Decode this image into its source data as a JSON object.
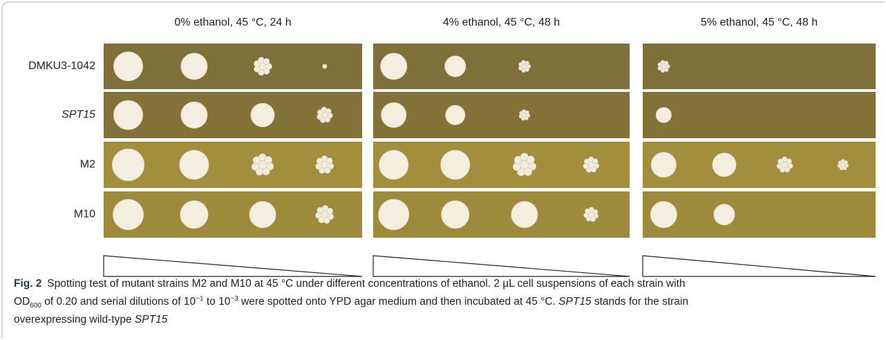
{
  "figure": {
    "columns": [
      "0% ethanol, 45 °C, 24 h",
      "4% ethanol, 45 °C, 48 h",
      "5% ethanol, 45 °C, 48 h"
    ],
    "rows": [
      "DMKU3-1042",
      "SPT15",
      "M2",
      "M10"
    ],
    "caption": {
      "label": "Fig. 2",
      "parts": [
        "Spotting test of mutant strains M2 and M10 at 45 °C under different concentrations of ethanol. 2 µL cell suspensions of each strain with",
        "OD",
        "600",
        " of 0.20 and serial dilutions of 10",
        "−1",
        " to 10",
        "−3",
        " were spotted onto YPD agar medium and then incubated at 45 °C. ",
        "SPT15",
        " stands for the strain",
        "overexpressing wild-type ",
        "SPT15"
      ]
    }
  }
}
